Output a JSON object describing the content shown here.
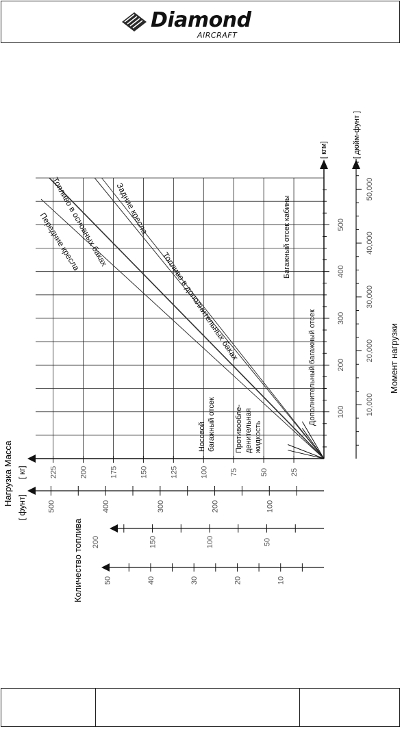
{
  "header": {
    "logo_word": "Diamond",
    "logo_sub": "AIRCRAFT"
  },
  "chart_data": {
    "type": "line",
    "orientation": "rotated-90-ccw",
    "y_axis_label": "Нагрузка Масса",
    "units_kg": "[ кг]",
    "units_lb": "[ фунт]",
    "mass_kg_ticks": [
      "25",
      "50",
      "75",
      "100",
      "125",
      "150",
      "175",
      "200",
      "225"
    ],
    "mass_lb_ticks": [
      "100",
      "200",
      "300",
      "400",
      "500"
    ],
    "fuel_label": "Количество топлива",
    "fuel_scale_1_ticks": [
      "50",
      "100",
      "150",
      "200"
    ],
    "fuel_scale_2_ticks": [
      "10",
      "20",
      "30",
      "40",
      "50"
    ],
    "x_axis_label": "Момент нагрузки",
    "units_kgm": "[ кгм]",
    "units_inlb": "[ дюйм-фунт ]",
    "moment_kgm_ticks": [
      "100",
      "200",
      "300",
      "400",
      "500"
    ],
    "moment_inlb_ticks": [
      "10,000",
      "20,000",
      "30,000",
      "40,000",
      "50,000"
    ],
    "series": [
      {
        "name": "Передние кресла",
        "slope_kgm_per_kg": 2.36
      },
      {
        "name": "Топливо в основных баках",
        "slope_kgm_per_kg": 2.63
      },
      {
        "name": "Задние кресла",
        "slope_kgm_per_kg": 3.25
      },
      {
        "name": "Топливо в дополнительных баках",
        "slope_kgm_per_kg": 3.15
      },
      {
        "name": "Багажный отсек кабины",
        "slope_kgm_per_kg": 3.6
      },
      {
        "name": "Дополнительный багажный отсек",
        "slope_kgm_per_kg": 4.4
      },
      {
        "name": "Носовой багажный отсек",
        "slope_kgm_per_kg": 0.6
      },
      {
        "name": "Противообле-денительная жидкость",
        "slope_kgm_per_kg": 1.0
      }
    ],
    "xlim_kgm": [
      0,
      600
    ],
    "ylim_kg": [
      0,
      235
    ],
    "grid": true
  }
}
